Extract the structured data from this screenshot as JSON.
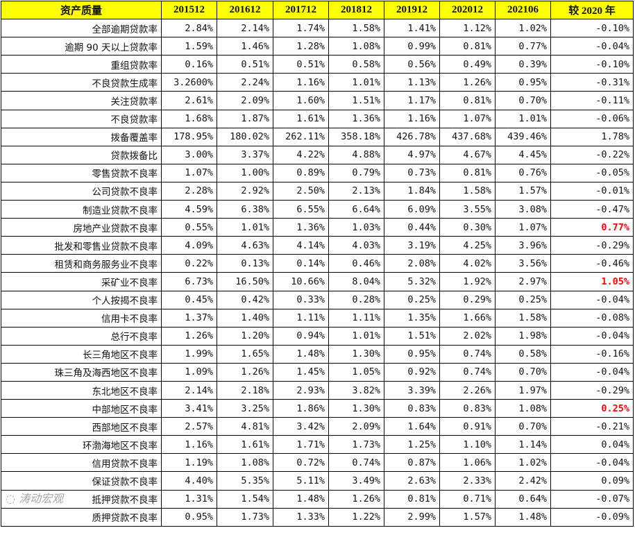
{
  "headers": [
    "资产质量",
    "201512",
    "201612",
    "201712",
    "201812",
    "201912",
    "202012",
    "202106",
    "较 2020 年"
  ],
  "highlight_color": "#ff0000",
  "header_color": "#ffff00",
  "rows": [
    [
      "全部逾期贷款率",
      "2.84%",
      "2.14%",
      "1.74%",
      "1.58%",
      "1.41%",
      "1.12%",
      "1.02%",
      "-0.10%"
    ],
    [
      "逾期 90 天以上贷款率",
      "1.59%",
      "1.46%",
      "1.28%",
      "1.08%",
      "0.99%",
      "0.81%",
      "0.77%",
      "-0.04%"
    ],
    [
      "重组贷款率",
      "0.16%",
      "0.51%",
      "0.51%",
      "0.58%",
      "0.56%",
      "0.49%",
      "0.39%",
      "-0.10%"
    ],
    [
      "不良贷款生成率",
      "3.2600%",
      "2.24%",
      "1.16%",
      "1.01%",
      "1.13%",
      "1.26%",
      "0.95%",
      "-0.31%"
    ],
    [
      "关注贷款率",
      "2.61%",
      "2.09%",
      "1.60%",
      "1.51%",
      "1.17%",
      "0.81%",
      "0.70%",
      "-0.11%"
    ],
    [
      "不良贷款率",
      "1.68%",
      "1.87%",
      "1.61%",
      "1.36%",
      "1.16%",
      "1.07%",
      "1.01%",
      "-0.06%"
    ],
    [
      "拨备覆盖率",
      "178.95%",
      "180.02%",
      "262.11%",
      "358.18%",
      "426.78%",
      "437.68%",
      "439.46%",
      "1.78%"
    ],
    [
      "贷款拨备比",
      "3.00%",
      "3.37%",
      "4.22%",
      "4.88%",
      "4.97%",
      "4.67%",
      "4.45%",
      "-0.22%"
    ],
    [
      "零售贷款不良率",
      "1.07%",
      "1.00%",
      "0.89%",
      "0.79%",
      "0.73%",
      "0.81%",
      "0.76%",
      "-0.05%"
    ],
    [
      "公司贷款不良率",
      "2.28%",
      "2.92%",
      "2.50%",
      "2.13%",
      "1.84%",
      "1.58%",
      "1.57%",
      "-0.01%"
    ],
    [
      "制造业贷款不良率",
      "4.59%",
      "6.38%",
      "6.55%",
      "6.64%",
      "6.09%",
      "3.55%",
      "3.08%",
      "-0.47%"
    ],
    [
      "房地产业贷款不良率",
      "0.55%",
      "1.01%",
      "1.36%",
      "1.03%",
      "0.44%",
      "0.30%",
      "1.07%",
      "0.77%"
    ],
    [
      "批发和零售业贷款不良率",
      "4.09%",
      "4.63%",
      "4.14%",
      "4.03%",
      "3.19%",
      "4.25%",
      "3.96%",
      "-0.29%"
    ],
    [
      "租赁和商务服务业不良率",
      "0.22%",
      "0.13%",
      "0.14%",
      "0.46%",
      "2.08%",
      "4.02%",
      "3.56%",
      "-0.46%"
    ],
    [
      "采矿业不良率",
      "6.73%",
      "16.50%",
      "10.66%",
      "8.04%",
      "5.32%",
      "1.92%",
      "2.97%",
      "1.05%"
    ],
    [
      "个人按揭不良率",
      "0.45%",
      "0.42%",
      "0.33%",
      "0.28%",
      "0.25%",
      "0.29%",
      "0.25%",
      "-0.04%"
    ],
    [
      "信用卡不良率",
      "1.37%",
      "1.40%",
      "1.11%",
      "1.11%",
      "1.35%",
      "1.66%",
      "1.58%",
      "-0.08%"
    ],
    [
      "总行不良率",
      "1.26%",
      "1.20%",
      "0.94%",
      "1.01%",
      "1.51%",
      "2.02%",
      "1.98%",
      "-0.04%"
    ],
    [
      "长三角地区不良率",
      "1.99%",
      "1.65%",
      "1.48%",
      "1.30%",
      "0.95%",
      "0.74%",
      "0.58%",
      "-0.16%"
    ],
    [
      "珠三角及海西地区不良率",
      "1.09%",
      "1.26%",
      "1.45%",
      "1.05%",
      "0.92%",
      "0.74%",
      "0.70%",
      "-0.04%"
    ],
    [
      "东北地区不良率",
      "2.14%",
      "2.18%",
      "2.93%",
      "3.82%",
      "3.39%",
      "2.26%",
      "1.97%",
      "-0.29%"
    ],
    [
      "中部地区不良率",
      "3.41%",
      "3.25%",
      "1.86%",
      "1.30%",
      "0.83%",
      "0.83%",
      "1.08%",
      "0.25%"
    ],
    [
      "西部地区不良率",
      "2.57%",
      "4.81%",
      "3.42%",
      "2.09%",
      "1.64%",
      "0.91%",
      "0.70%",
      "-0.21%"
    ],
    [
      "环渤海地区不良率",
      "1.16%",
      "1.61%",
      "1.71%",
      "1.73%",
      "1.25%",
      "1.10%",
      "1.14%",
      "0.04%"
    ],
    [
      "信用贷款不良率",
      "1.19%",
      "1.08%",
      "0.72%",
      "0.74%",
      "0.87%",
      "1.06%",
      "1.02%",
      "-0.04%"
    ],
    [
      "保证贷款不良率",
      "4.40%",
      "5.35%",
      "5.11%",
      "3.49%",
      "2.63%",
      "2.33%",
      "2.42%",
      "0.09%"
    ],
    [
      "抵押贷款不良率",
      "1.31%",
      "1.54%",
      "1.48%",
      "1.26%",
      "0.81%",
      "0.71%",
      "0.64%",
      "-0.07%"
    ],
    [
      "质押贷款不良率",
      "0.95%",
      "1.73%",
      "1.33%",
      "1.22%",
      "2.99%",
      "1.57%",
      "1.48%",
      "-0.09%"
    ]
  ],
  "highlighted_rows": [
    11,
    14,
    21
  ],
  "watermark": "涛动宏观"
}
